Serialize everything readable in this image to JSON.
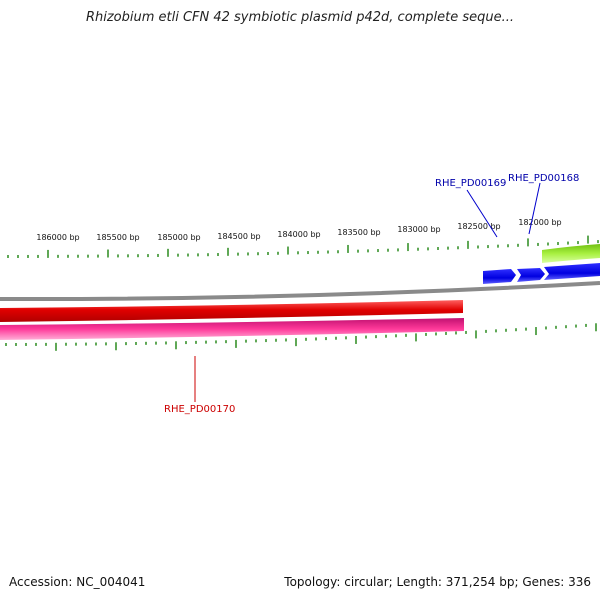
{
  "title": "Rhizobium etli CFN 42 symbiotic plasmid p42d, complete seque...",
  "footer": {
    "accession": "Accession: NC_004041",
    "summary": "Topology: circular; Length: 371,254 bp; Genes: 336"
  },
  "ruler_labels": [
    "186000 bp",
    "185500 bp",
    "185000 bp",
    "184500 bp",
    "184000 bp",
    "183500 bp",
    "183000 bp",
    "182500 bp",
    "182000 bp"
  ],
  "genes": {
    "g168": {
      "label": "RHE_PD00168"
    },
    "g169": {
      "label": "RHE_PD00169"
    },
    "g170": {
      "label": "RHE_PD00170"
    }
  },
  "colors": {
    "tick": "#2a8a1e",
    "backbone": "#808080",
    "red_gene": "#e00000",
    "pink_gene": "#e0207e",
    "blue_gene": "#0000ee",
    "green_gene": "#8ee020",
    "label_blue": "#0000aa",
    "label_red": "#cc0000"
  }
}
